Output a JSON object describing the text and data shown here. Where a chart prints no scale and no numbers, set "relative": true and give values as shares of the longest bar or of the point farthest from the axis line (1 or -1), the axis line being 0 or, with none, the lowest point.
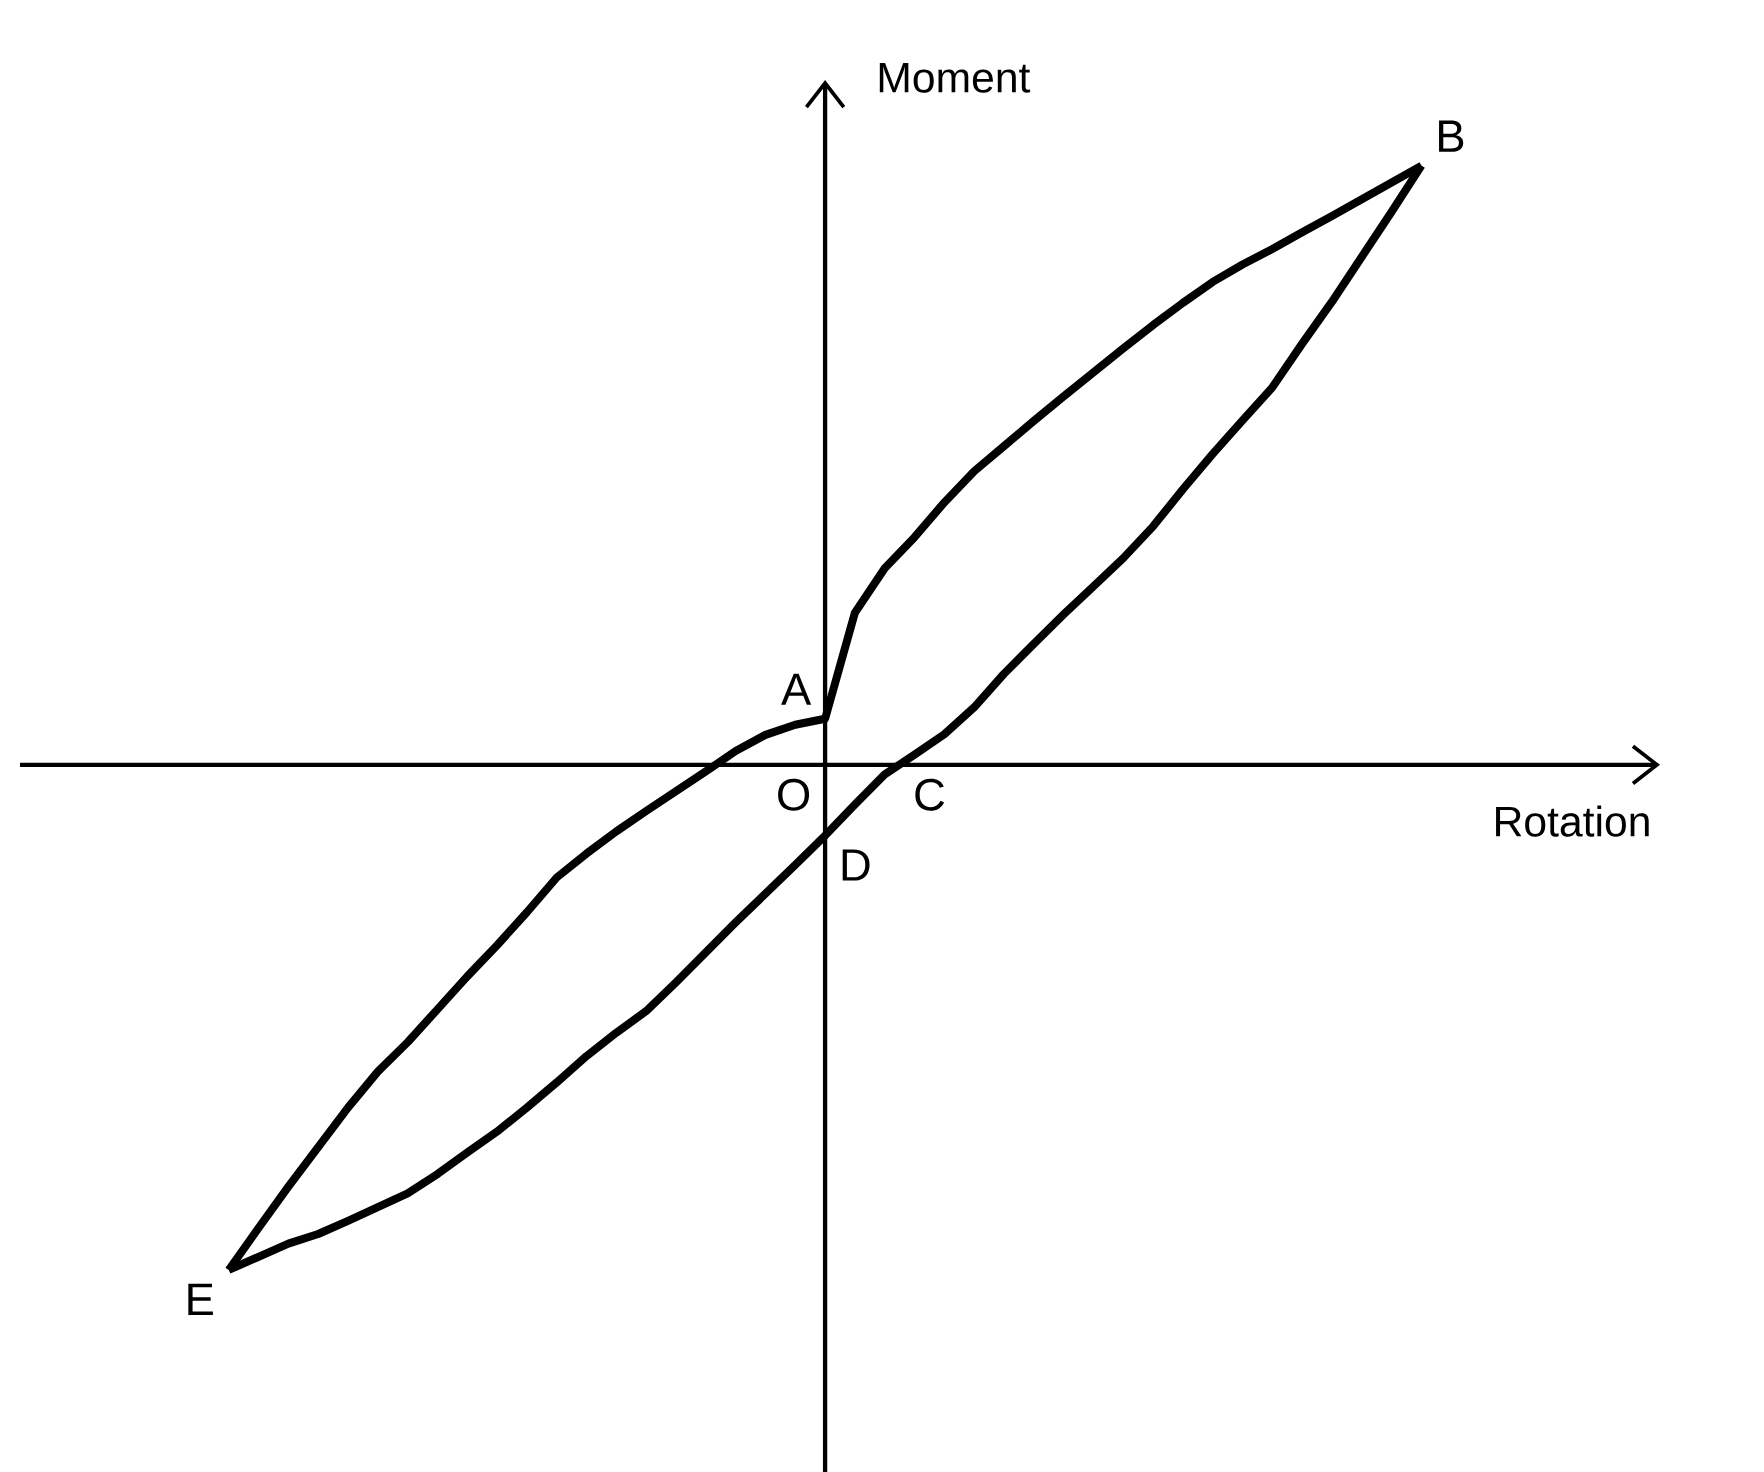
{
  "chart_data": {
    "type": "line",
    "relative": true,
    "xlabel": "Rotation",
    "ylabel": "Moment",
    "categories": [
      null,
      null,
      null,
      null,
      null,
      null,
      null,
      null,
      null,
      null,
      null,
      null,
      null,
      null,
      null,
      null,
      null,
      null,
      null,
      null,
      null,
      null,
      null,
      null,
      null,
      null,
      null,
      null,
      null,
      null,
      null,
      null,
      null,
      null,
      null,
      null,
      null,
      null,
      null,
      null,
      null,
      null,
      null,
      null,
      null,
      null,
      null,
      null,
      null,
      null,
      null,
      null,
      null,
      null,
      null,
      null
    ],
    "series": [
      {
        "color": "#000000",
        "values": [
          null,
          null,
          null,
          null,
          null,
          null,
          null,
          -0.843,
          -0.773,
          -0.704,
          -0.638,
          -0.572,
          -0.512,
          -0.463,
          -0.408,
          -0.353,
          -0.301,
          -0.246,
          -0.188,
          -0.148,
          -0.111,
          -0.077,
          -0.044,
          -0.011,
          0.023,
          0.05,
          0.067,
          0.077,
          0.254,
          0.328,
          0.38,
          0.438,
          0.49,
          0.532,
          0.574,
          0.615,
          0.655,
          0.695,
          0.734,
          0.771,
          0.806,
          0.835,
          0.861,
          0.889,
          0.916,
          0.944,
          0.972,
          1,
          null,
          null,
          null,
          null,
          null,
          null,
          null,
          null
        ]
      },
      {
        "color": "#000000",
        "values": [
          null,
          null,
          null,
          null,
          null,
          null,
          null,
          -0.843,
          -0.821,
          -0.799,
          -0.783,
          -0.761,
          -0.738,
          -0.715,
          -0.683,
          -0.647,
          -0.612,
          -0.572,
          -0.53,
          -0.486,
          -0.447,
          -0.411,
          -0.363,
          -0.313,
          -0.263,
          -0.215,
          -0.167,
          -0.118,
          -0.066,
          -0.016,
          0.017,
          0.051,
          0.096,
          0.152,
          0.202,
          0.251,
          0.298,
          0.345,
          0.398,
          0.46,
          0.519,
          0.575,
          0.63,
          0.703,
          0.773,
          0.848,
          0.923,
          1,
          null,
          null,
          null,
          null,
          null,
          null,
          null,
          null
        ]
      }
    ],
    "annotations": [
      "A",
      "B",
      "O",
      "C",
      "D",
      "E"
    ]
  }
}
